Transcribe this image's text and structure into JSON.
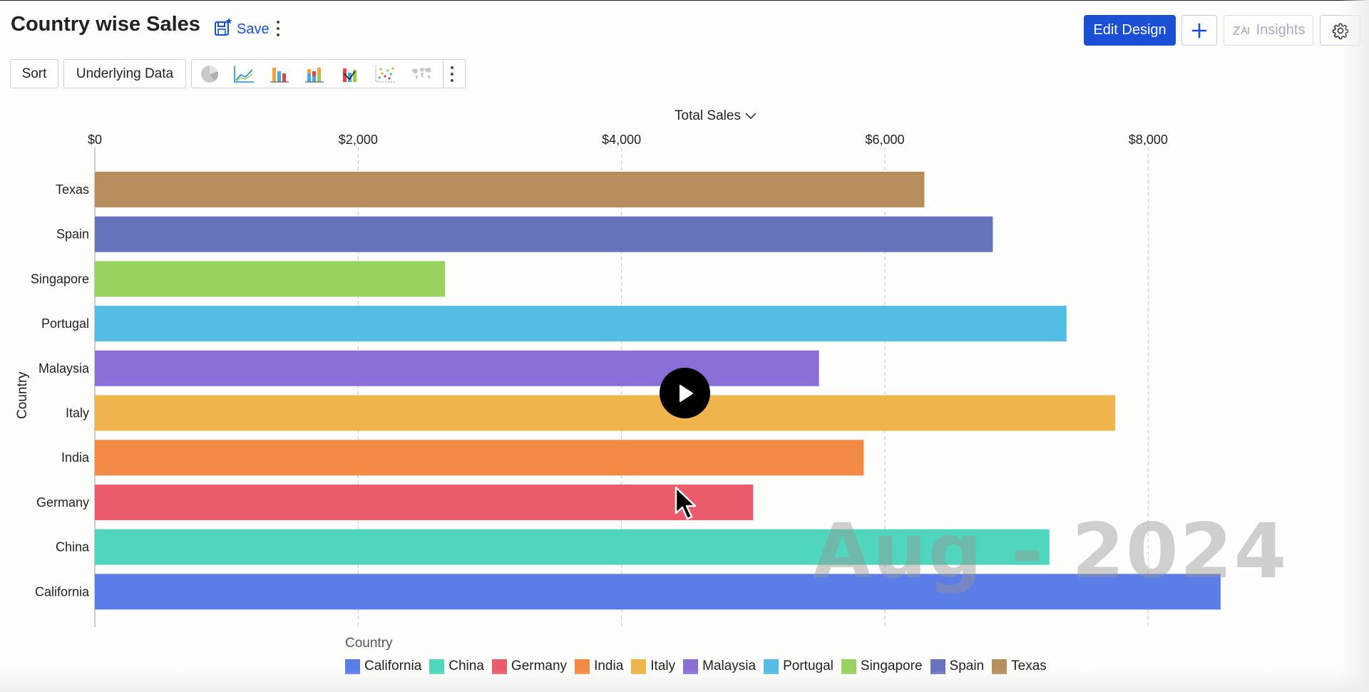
{
  "header": {
    "title": "Country wise Sales",
    "save_label": "Save",
    "edit_design_label": "Edit Design",
    "insights_label": "Insights"
  },
  "toolbar": {
    "sort_label": "Sort",
    "underlying_label": "Underlying Data",
    "chart_types": [
      "pie-chart-icon",
      "line-chart-icon",
      "bar-chart-icon",
      "stacked-bar-icon",
      "waterfall-chart-icon",
      "scatter-chart-icon",
      "map-chart-icon"
    ]
  },
  "chart_data": {
    "type": "bar",
    "orientation": "horizontal",
    "metric_label": "Total Sales",
    "ylabel": "Country",
    "categories": [
      "Texas",
      "Spain",
      "Singapore",
      "Portugal",
      "Malaysia",
      "Italy",
      "India",
      "Germany",
      "China",
      "California"
    ],
    "values": [
      6300,
      6820,
      2660,
      7380,
      5500,
      7750,
      5840,
      5000,
      7250,
      8550
    ],
    "colors": [
      "#b78d5d",
      "#6873bd",
      "#97d35e",
      "#54bde4",
      "#8c6fd6",
      "#efb44c",
      "#f48b45",
      "#ea5c6b",
      "#4fd6bc",
      "#5a7de8"
    ],
    "xlim": [
      0,
      9000
    ],
    "xticks": [
      0,
      2000,
      4000,
      6000,
      8000
    ],
    "xtick_labels": [
      "$0",
      "$2,000",
      "$4,000",
      "$6,000",
      "$8,000"
    ],
    "grid": "vertical-dashed",
    "legend_title": "Country",
    "legend_position": "bottom",
    "legend": [
      "California",
      "China",
      "Germany",
      "India",
      "Italy",
      "Malaysia",
      "Portugal",
      "Singapore",
      "Spain",
      "Texas"
    ],
    "legend_colors": [
      "#5a7de8",
      "#4fd6bc",
      "#ea5c6b",
      "#f48b45",
      "#efb44c",
      "#8c6fd6",
      "#54bde4",
      "#97d35e",
      "#6873bd",
      "#b78d5d"
    ],
    "annotation": "Aug - 2024"
  }
}
